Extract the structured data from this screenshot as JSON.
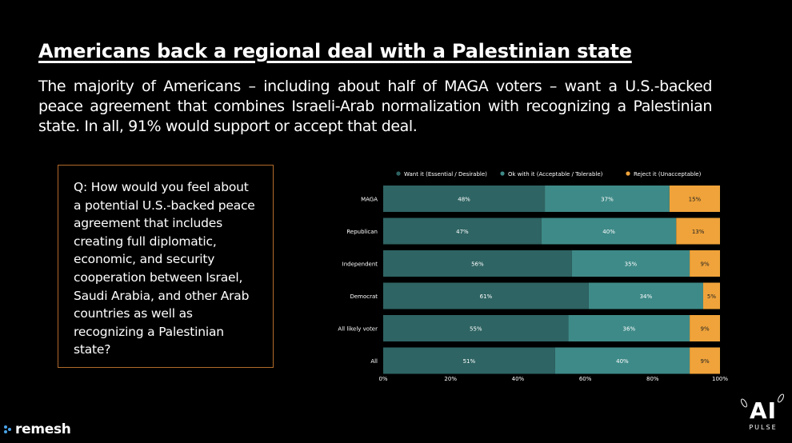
{
  "title": "Americans back a regional deal with a Palestinian state",
  "subtitle": "The majority of Americans – including about half of MAGA voters – want a U.S.-backed peace agreement that combines Israeli-Arab normalization with recognizing a Palestinian state. In all, 91% would support or accept that deal.",
  "question": "Q: How would you feel about a potential U.S.-backed peace agreement that includes creating full diplomatic, economic, and security cooperation between Israel, Saudi Arabia, and other Arab countries as well as recognizing a Palestinian state?",
  "brand": "remesh",
  "logo": {
    "main": "AI",
    "sub": "PULSE"
  },
  "colors": {
    "want": "#2e6463",
    "ok": "#3e8a88",
    "reject": "#f0a33a",
    "border": "#b06a2a"
  },
  "chart_data": {
    "type": "bar",
    "orientation": "horizontal",
    "stacked": true,
    "categories": [
      "MAGA",
      "Republican",
      "Independent",
      "Democrat",
      "All likely voter",
      "All"
    ],
    "series": [
      {
        "name": "Want it (Essential / Desirable)",
        "values": [
          48,
          47,
          56,
          61,
          55,
          51
        ]
      },
      {
        "name": "Ok with it (Acceptable / Tolerable)",
        "values": [
          37,
          40,
          35,
          34,
          36,
          40
        ]
      },
      {
        "name": "Reject it (Unacceptable)",
        "values": [
          15,
          13,
          9,
          5,
          9,
          9
        ]
      }
    ],
    "xlim": [
      0,
      100
    ],
    "xticks": [
      "0%",
      "20%",
      "40%",
      "60%",
      "80%",
      "100%"
    ],
    "value_format": "percent",
    "legend": "top"
  }
}
